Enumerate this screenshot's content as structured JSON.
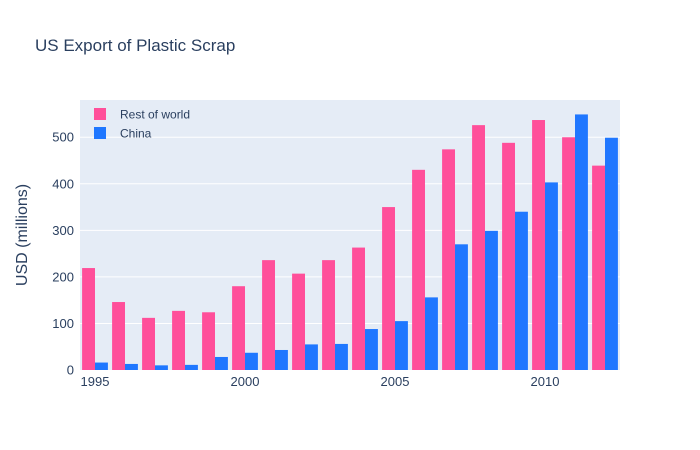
{
  "chart_data": {
    "type": "bar",
    "title": "US Export of Plastic Scrap",
    "xlabel": "",
    "ylabel": "USD (millions)",
    "x": [
      1995,
      1996,
      1997,
      1998,
      1999,
      2000,
      2001,
      2002,
      2003,
      2004,
      2005,
      2006,
      2007,
      2008,
      2009,
      2010,
      2011,
      2012
    ],
    "xlim": [
      1994.5,
      2012.5
    ],
    "ylim": [
      0,
      580
    ],
    "x_ticks": [
      1995,
      2000,
      2005,
      2010
    ],
    "y_ticks": [
      0,
      100,
      200,
      300,
      400,
      500
    ],
    "grid": true,
    "legend_position": "top-left",
    "series": [
      {
        "name": "Rest of world",
        "color": "#ff4f9a",
        "values": [
          219,
          146,
          112,
          127,
          124,
          180,
          236,
          207,
          236,
          263,
          350,
          430,
          474,
          526,
          488,
          537,
          500,
          439
        ]
      },
      {
        "name": "China",
        "color": "#1f77ff",
        "values": [
          16,
          13,
          10,
          11,
          28,
          37,
          43,
          55,
          56,
          88,
          105,
          156,
          270,
          299,
          340,
          403,
          549,
          499
        ]
      }
    ]
  }
}
